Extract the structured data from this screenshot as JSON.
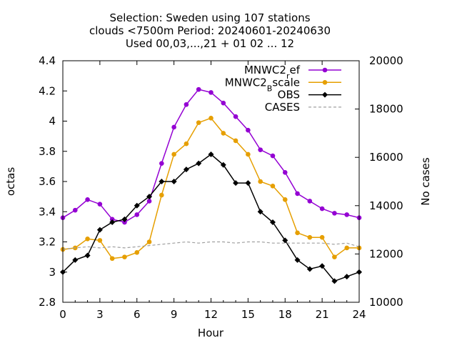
{
  "chart_data": {
    "type": "line",
    "title_lines": [
      "Selection: Sweden using   107 stations",
      "clouds <7500m   Period: 20240601-20240630",
      "Used 00,03,...,21 + 01 02 ... 12"
    ],
    "xlabel": "Hour",
    "ylabel": "octas",
    "y2label": "No cases",
    "xlim": [
      0,
      24
    ],
    "ylim": [
      2.8,
      4.4
    ],
    "y2lim": [
      10000,
      20000
    ],
    "xticks": [
      0,
      3,
      6,
      9,
      12,
      15,
      18,
      21,
      24
    ],
    "yticks": [
      "2.8",
      "3",
      "3.2",
      "3.4",
      "3.6",
      "3.8",
      "4",
      "4.2",
      "4.4"
    ],
    "y2ticks": [
      "10000",
      "12000",
      "14000",
      "16000",
      "18000",
      "20000"
    ],
    "legend_position": "top-right",
    "x": [
      0,
      1,
      2,
      3,
      4,
      5,
      6,
      7,
      8,
      9,
      10,
      11,
      12,
      13,
      14,
      15,
      16,
      17,
      18,
      19,
      20,
      21,
      22,
      23,
      24
    ],
    "series": [
      {
        "name": "MNWC2_ref",
        "legend_main": "MNWC2",
        "legend_sub": "r",
        "legend_tail": "ef",
        "color": "#9400d3",
        "marker": "circle",
        "axis": "y1",
        "values": [
          3.36,
          3.41,
          3.48,
          3.45,
          3.35,
          3.33,
          3.38,
          3.47,
          3.72,
          3.96,
          4.11,
          4.21,
          4.19,
          4.12,
          4.03,
          3.94,
          3.81,
          3.77,
          3.66,
          3.52,
          3.47,
          3.42,
          3.39,
          3.38,
          3.36
        ]
      },
      {
        "name": "MNWC2_Bscale",
        "legend_main": "MNWC2",
        "legend_sub": "B",
        "legend_tail": "scale",
        "color": "#e69f00",
        "marker": "circle",
        "axis": "y1",
        "values": [
          3.15,
          3.16,
          3.22,
          3.21,
          3.09,
          3.1,
          3.13,
          3.2,
          3.51,
          3.78,
          3.85,
          3.99,
          4.02,
          3.92,
          3.87,
          3.78,
          3.6,
          3.57,
          3.48,
          3.26,
          3.23,
          3.23,
          3.1,
          3.16,
          3.16
        ]
      },
      {
        "name": "OBS",
        "legend_main": "OBS",
        "legend_sub": "",
        "legend_tail": "",
        "color": "#000000",
        "marker": "diamond",
        "axis": "y1",
        "values": [
          3.0,
          3.08,
          3.11,
          3.28,
          3.33,
          3.35,
          3.44,
          3.5,
          3.6,
          3.6,
          3.68,
          3.72,
          3.78,
          3.71,
          3.59,
          3.59,
          3.4,
          3.33,
          3.21,
          3.08,
          3.02,
          3.04,
          2.94,
          2.97,
          3.0
        ]
      },
      {
        "name": "CASES",
        "legend_main": "CASES",
        "legend_sub": "",
        "legend_tail": "",
        "color": "#a0a0a0",
        "marker": "none",
        "dashed": true,
        "axis": "y2",
        "values": [
          12200,
          12250,
          12300,
          12250,
          12300,
          12250,
          12300,
          12350,
          12400,
          12450,
          12500,
          12450,
          12500,
          12500,
          12450,
          12500,
          12500,
          12450,
          12450,
          12450,
          12450,
          12450,
          12400,
          12450,
          12300
        ]
      }
    ]
  }
}
